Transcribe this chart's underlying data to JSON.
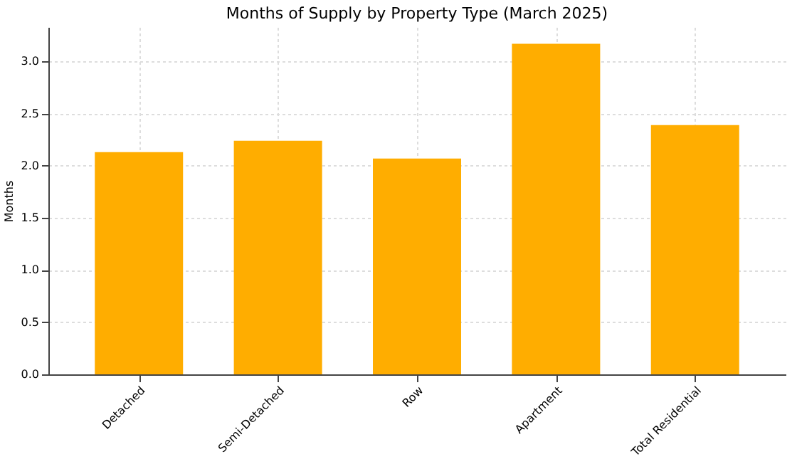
{
  "chart_data": {
    "type": "bar",
    "title": "Months of Supply by Property Type (March 2025)",
    "ylabel": "Months",
    "categories": [
      "Detached",
      "Semi-Detached",
      "Row",
      "Apartment",
      "Total Residential"
    ],
    "values": [
      2.13,
      2.24,
      2.07,
      3.17,
      2.39
    ],
    "color": "#ffad00",
    "ylim": [
      0,
      3.33
    ],
    "yticks": [
      {
        "value": 0,
        "label": "0.0"
      },
      0.5,
      {
        "value": 1,
        "label": "1.0"
      },
      1.5,
      {
        "value": 2,
        "label": "2.0"
      },
      2.5,
      {
        "value": 3,
        "label": "3.0"
      }
    ],
    "grid": true
  }
}
